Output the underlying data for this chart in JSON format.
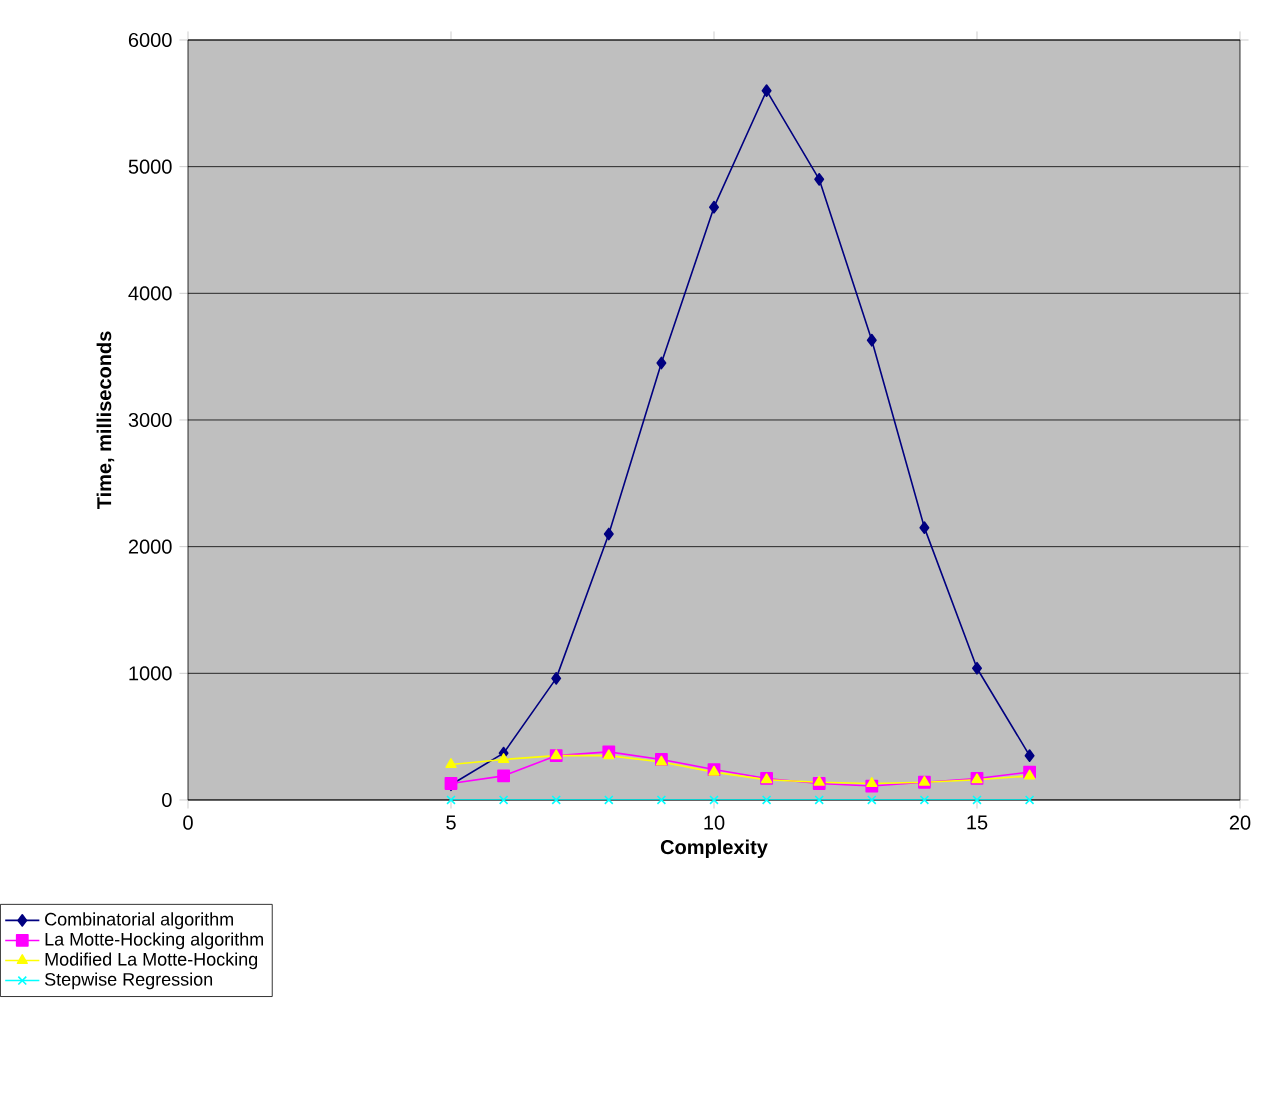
{
  "chart_data": {
    "type": "line",
    "xlabel": "Complexity",
    "ylabel": "Time, milliseconds",
    "xlim": [
      0,
      20
    ],
    "xticks": [
      0,
      5,
      10,
      15,
      20
    ],
    "ylim": [
      0,
      6000
    ],
    "yticks": [
      0,
      1000,
      2000,
      3000,
      4000,
      5000,
      6000
    ],
    "grid": "y",
    "legend": "bottom left",
    "x": [
      5,
      6,
      7,
      8,
      9,
      10,
      11,
      12,
      13,
      14,
      15,
      16
    ],
    "series": [
      {
        "name": "Combinatorial algorithm",
        "color": "#000080",
        "marker": "diamond",
        "values": [
          120,
          370,
          960,
          2100,
          3450,
          4680,
          5600,
          4900,
          3630,
          2150,
          1040,
          350
        ]
      },
      {
        "name": "La Motte-Hocking algorithm",
        "color": "#ff00ff",
        "marker": "square",
        "values": [
          130,
          190,
          350,
          380,
          320,
          240,
          170,
          130,
          110,
          140,
          170,
          220
        ]
      },
      {
        "name": "Modified La Motte-Hocking",
        "color": "#ffff00",
        "marker": "triangle",
        "values": [
          280,
          320,
          350,
          350,
          300,
          220,
          160,
          140,
          130,
          140,
          160,
          190
        ]
      },
      {
        "name": "Stepwise Regression",
        "color": "#00ffff",
        "marker": "cross",
        "values": [
          0,
          0,
          0,
          0,
          0,
          0,
          0,
          0,
          0,
          0,
          0,
          0
        ]
      }
    ]
  }
}
